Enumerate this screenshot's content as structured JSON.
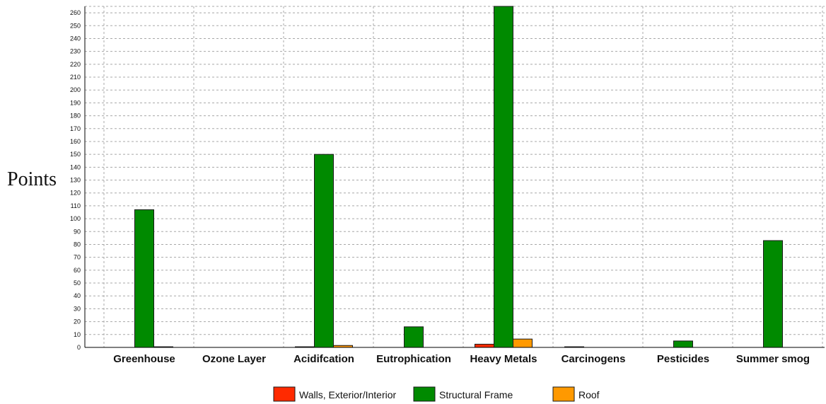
{
  "chart_data": {
    "type": "bar",
    "ylabel": "Points",
    "categories": [
      "Greenhouse",
      "Ozone Layer",
      "Acidifcation",
      "Eutrophication",
      "Heavy Metals",
      "Carcinogens",
      "Pesticides",
      "Summer smog"
    ],
    "series": [
      {
        "name": "Walls, Exterior/Interior",
        "color": "#ff2a00",
        "values": [
          0,
          0,
          0.5,
          0,
          2.5,
          0.5,
          0,
          0
        ]
      },
      {
        "name": "Structural Frame",
        "color": "#008a00",
        "values": [
          107,
          0,
          150,
          16,
          265,
          0,
          5,
          83
        ]
      },
      {
        "name": "Roof",
        "color": "#ff9900",
        "values": [
          0.5,
          0,
          1.5,
          0,
          6.5,
          0,
          0,
          0
        ]
      }
    ],
    "ylim": [
      0,
      265
    ],
    "yticks": [
      0,
      10,
      20,
      30,
      40,
      50,
      60,
      70,
      80,
      90,
      100,
      110,
      120,
      130,
      140,
      150,
      160,
      170,
      180,
      190,
      200,
      210,
      220,
      230,
      240,
      250,
      260
    ],
    "grid": true,
    "legend_position": "bottom"
  }
}
